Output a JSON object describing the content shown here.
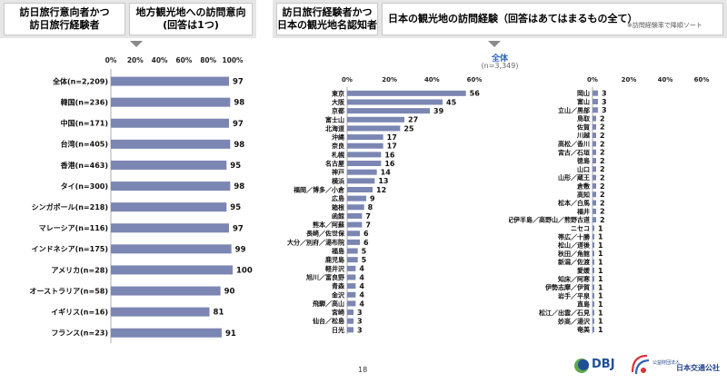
{
  "left_panel": {
    "header_left": "訪日旅行意向者かつ\n訪日旅行経験者",
    "header_right": "地方観光地への訪問意向\n(回答は1つ)"
  },
  "right_panel": {
    "header_left": "訪日旅行経験者かつ\n日本の観光地名認知者",
    "header_right": "日本の観光地の訪問経験（回答はあてはまるもの全て）",
    "note": "※訪問経験率で降順ソート",
    "subtitle": "全体",
    "subtitle_n": "(n=3,349)"
  },
  "page_number": "18",
  "logos": {
    "dbj": "DBJ",
    "jtb": "日本交通公社",
    "jtb_small": "公益財団法人"
  },
  "colors": {
    "bar": "#7b86b3",
    "header_bg": "#e6e6e6",
    "accent": "#2e64b8"
  },
  "chart_data": [
    {
      "type": "bar",
      "orientation": "horizontal",
      "xlim": [
        0,
        100
      ],
      "ticks": [
        "0%",
        "20%",
        "40%",
        "60%",
        "80%",
        "100%"
      ],
      "categories": [
        "全体(n=2,209)",
        "韓国(n=236)",
        "中国(n=171)",
        "台湾(n=405)",
        "香港(n=463)",
        "タイ(n=300)",
        "シンガポール(n=218)",
        "マレーシア(n=116)",
        "インドネシア(n=175)",
        "アメリカ(n=28)",
        "オーストラリア(n=58)",
        "イギリス(n=16)",
        "フランス(n=23)"
      ],
      "values": [
        97,
        98,
        97,
        98,
        95,
        98,
        95,
        97,
        99,
        100,
        90,
        81,
        91
      ]
    },
    {
      "type": "bar",
      "orientation": "horizontal",
      "xlim": [
        0,
        60
      ],
      "ticks": [
        "0%",
        "20%",
        "40%",
        "60%"
      ],
      "categories": [
        "東京",
        "大阪",
        "京都",
        "富士山",
        "北海道",
        "沖縄",
        "奈良",
        "札幌",
        "名古屋",
        "神戸",
        "横浜",
        "福岡／博多／小倉",
        "広島",
        "箱根",
        "函館",
        "熊本／阿蘇",
        "長崎／佐世保",
        "大分／別府／湯布院",
        "福島",
        "鹿児島",
        "軽井沢",
        "旭川／富良野",
        "青森",
        "金沢",
        "飛騨／高山",
        "宮崎",
        "仙台／松島",
        "日光"
      ],
      "values": [
        56,
        45,
        39,
        27,
        25,
        17,
        17,
        16,
        16,
        14,
        13,
        12,
        9,
        8,
        7,
        7,
        6,
        6,
        5,
        5,
        4,
        4,
        4,
        4,
        4,
        3,
        3,
        3
      ]
    },
    {
      "type": "bar",
      "orientation": "horizontal",
      "xlim": [
        0,
        60
      ],
      "ticks": [
        "0%",
        "20%",
        "40%",
        "60%"
      ],
      "categories": [
        "岡山",
        "富山",
        "立山／黒部",
        "鳥取",
        "佐賀",
        "川越",
        "高松／香川",
        "宮古／石垣",
        "徳島",
        "山口",
        "山形／蔵王",
        "倉敷",
        "高知",
        "松本／白馬",
        "福井",
        "紀伊半島／高野山／熊野古道",
        "ニセコ",
        "帯広／十勝",
        "松山／道後",
        "秋田／角館",
        "新潟／佐渡",
        "愛媛",
        "知床／阿寒",
        "伊勢志摩／伊賀",
        "岩手／平泉",
        "直島",
        "松江／出雲／石見",
        "妙高／湯沢",
        "奄美"
      ],
      "values": [
        3,
        3,
        3,
        2,
        2,
        2,
        2,
        2,
        2,
        2,
        2,
        2,
        2,
        2,
        2,
        2,
        1,
        1,
        1,
        1,
        1,
        1,
        1,
        1,
        1,
        1,
        1,
        1,
        1
      ]
    }
  ]
}
